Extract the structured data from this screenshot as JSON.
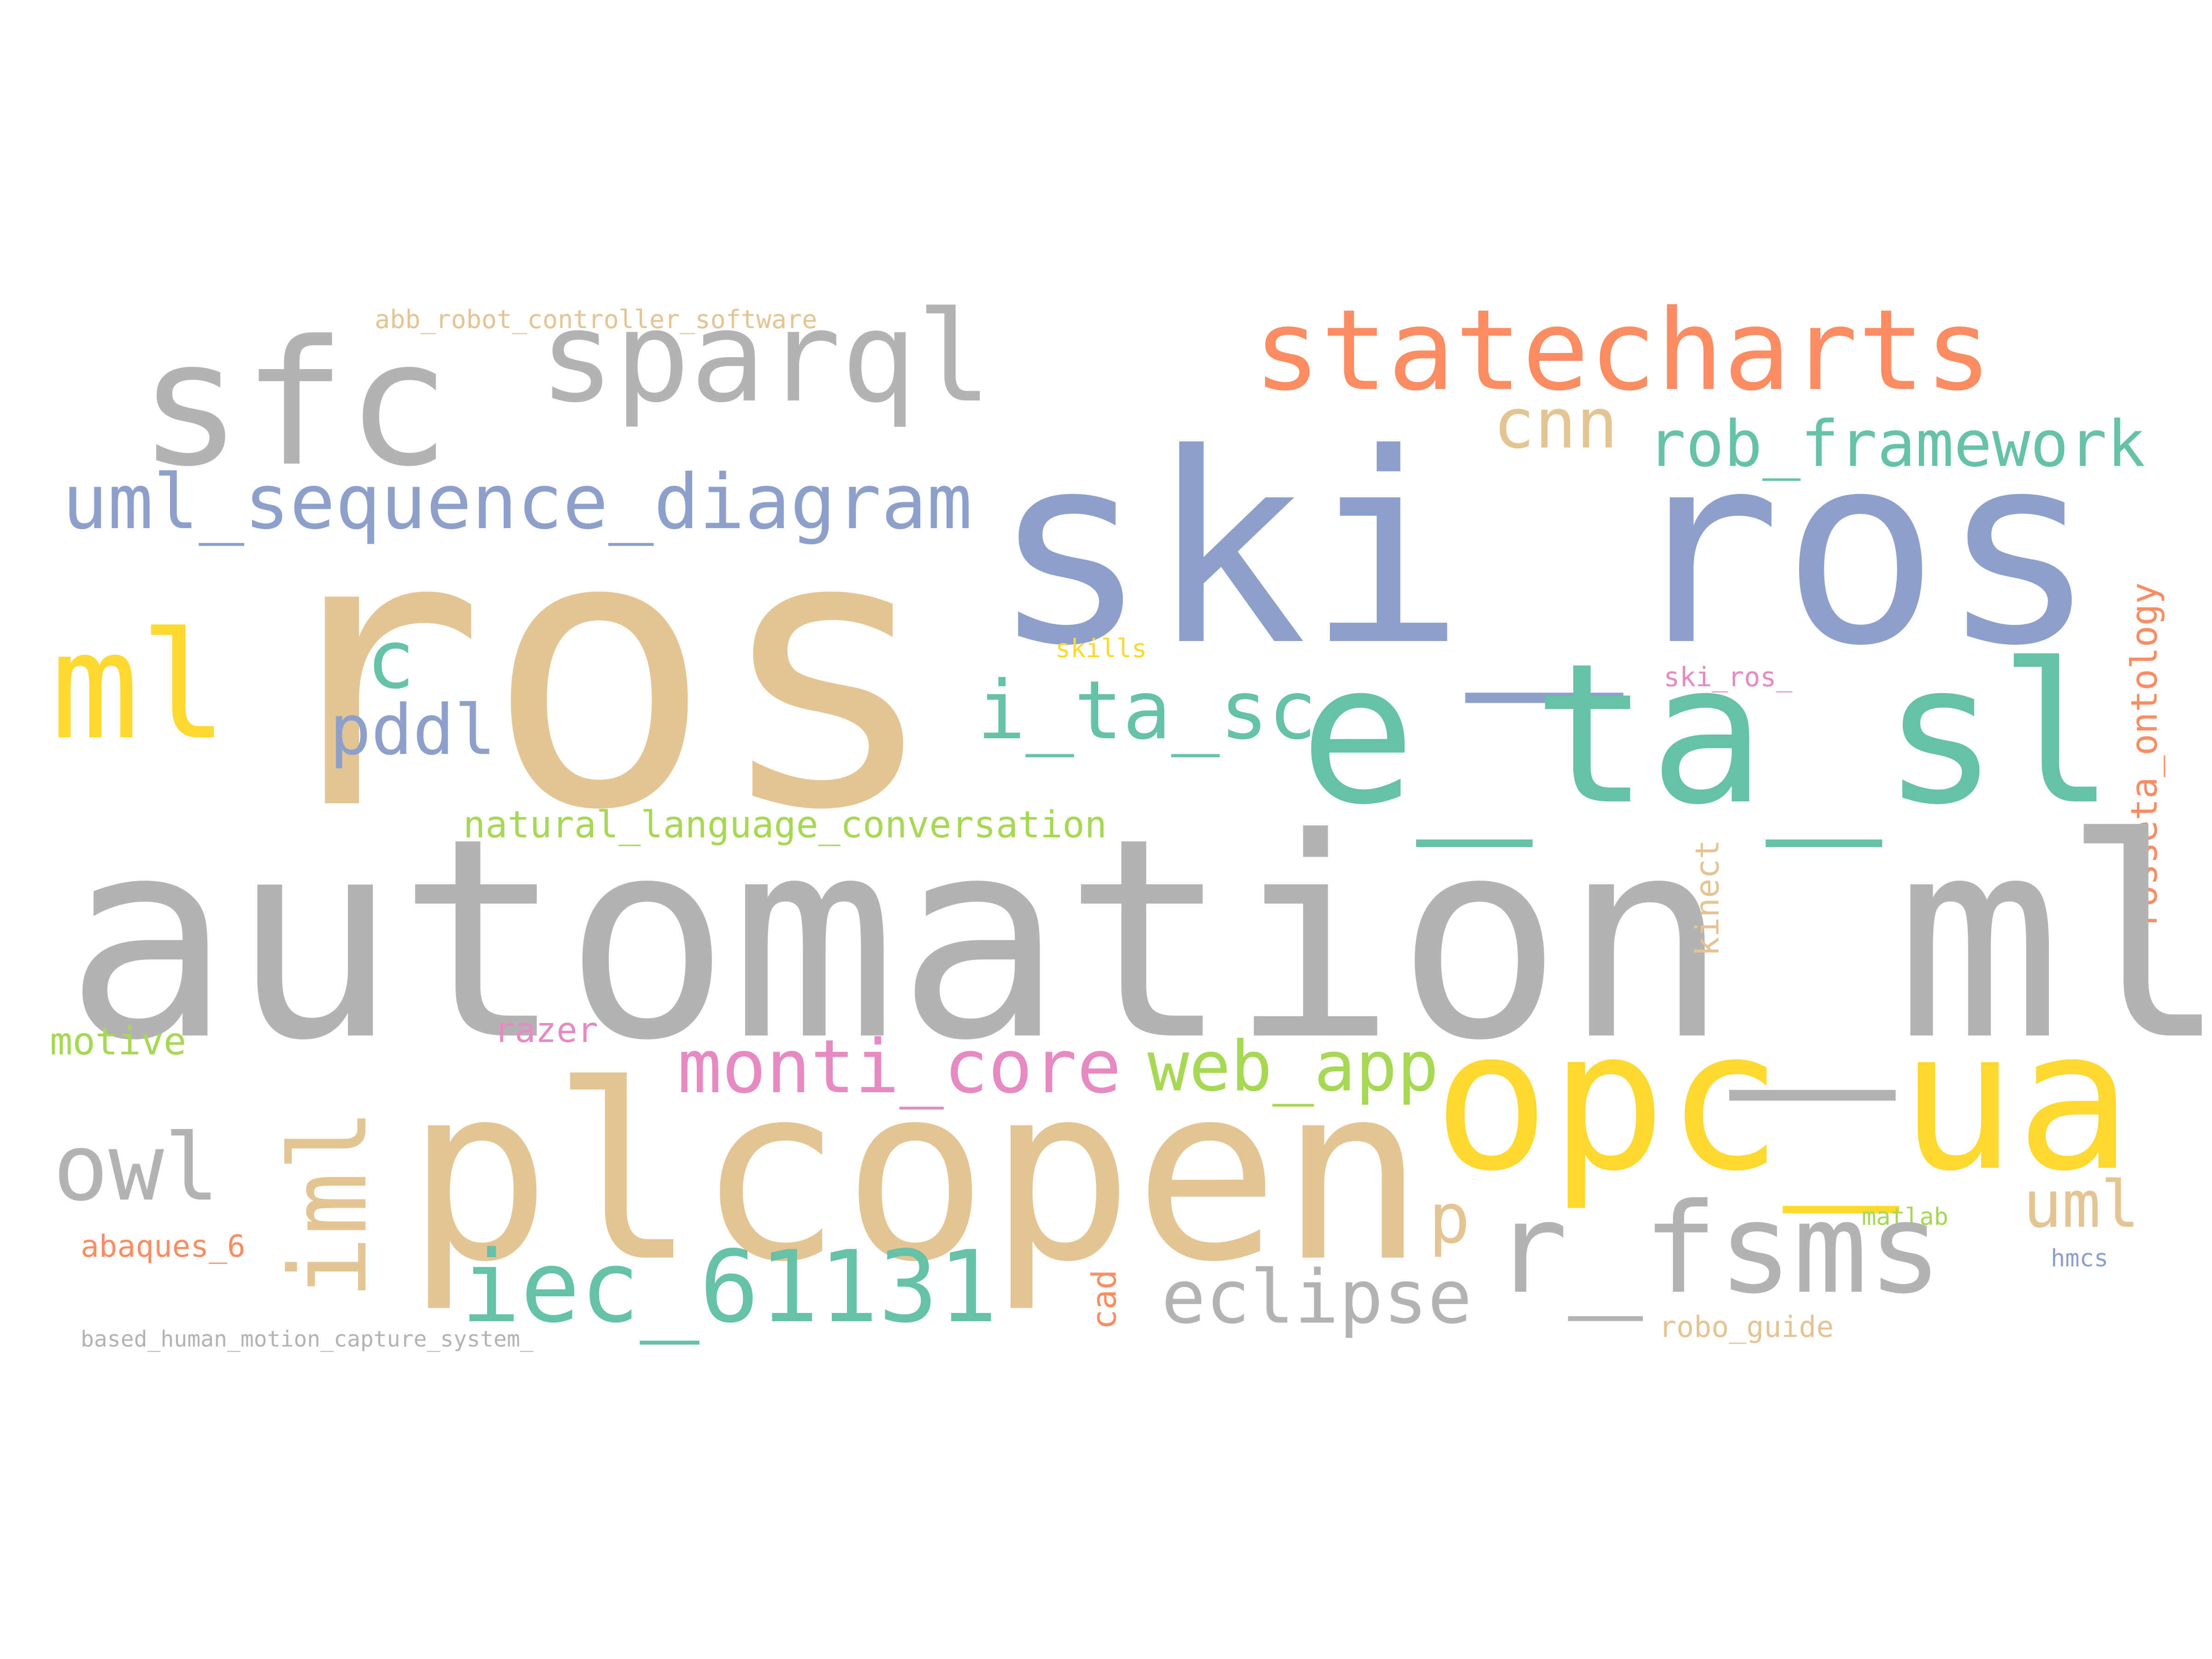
{
  "colors": {
    "gray": "#b3b3b3",
    "tan": "#e5c494",
    "blue": "#8da0cb",
    "teal": "#66c2a5",
    "orange": "#fc8d62",
    "yellow": "#ffd92f",
    "pink": "#e78ac3",
    "green": "#a6d854",
    "background": "#ffffff"
  },
  "words": [
    {
      "text": "abb_robot_controller_software",
      "color": "tan"
    },
    {
      "text": "sfc",
      "color": "gray"
    },
    {
      "text": "sparql",
      "color": "gray"
    },
    {
      "text": "statecharts",
      "color": "orange"
    },
    {
      "text": "cnn",
      "color": "tan"
    },
    {
      "text": "rob_framework",
      "color": "teal"
    },
    {
      "text": "uml_sequence_diagram",
      "color": "blue"
    },
    {
      "text": "ski_ros",
      "color": "blue"
    },
    {
      "text": "ros",
      "color": "tan"
    },
    {
      "text": "rosseta_ontology",
      "color": "orange"
    },
    {
      "text": "ml",
      "color": "yellow"
    },
    {
      "text": "c",
      "color": "teal"
    },
    {
      "text": "skills",
      "color": "yellow"
    },
    {
      "text": "ski_ros_",
      "color": "pink"
    },
    {
      "text": "pddl",
      "color": "blue"
    },
    {
      "text": "i_ta_sc",
      "color": "teal"
    },
    {
      "text": "e_ta_sl",
      "color": "teal"
    },
    {
      "text": "natural_language_conversation",
      "color": "green"
    },
    {
      "text": "automation_ml",
      "color": "gray"
    },
    {
      "text": "kinect",
      "color": "tan"
    },
    {
      "text": "motive",
      "color": "green"
    },
    {
      "text": "razer",
      "color": "pink"
    },
    {
      "text": "monti_core",
      "color": "pink"
    },
    {
      "text": "web_app",
      "color": "green"
    },
    {
      "text": "opc_ua",
      "color": "yellow"
    },
    {
      "text": "iml",
      "color": "tan"
    },
    {
      "text": "plcopen",
      "color": "tan"
    },
    {
      "text": "owl",
      "color": "gray"
    },
    {
      "text": "uml",
      "color": "tan"
    },
    {
      "text": "p",
      "color": "tan"
    },
    {
      "text": "matlab",
      "color": "green"
    },
    {
      "text": "r_fsms",
      "color": "gray"
    },
    {
      "text": "abaques_6",
      "color": "orange"
    },
    {
      "text": "hmcs",
      "color": "blue"
    },
    {
      "text": "iec_61131",
      "color": "teal"
    },
    {
      "text": "eclipse",
      "color": "gray"
    },
    {
      "text": "cad",
      "color": "orange"
    },
    {
      "text": "robo_guide",
      "color": "tan"
    },
    {
      "text": "based_human_motion_capture_system_",
      "color": "gray"
    }
  ]
}
